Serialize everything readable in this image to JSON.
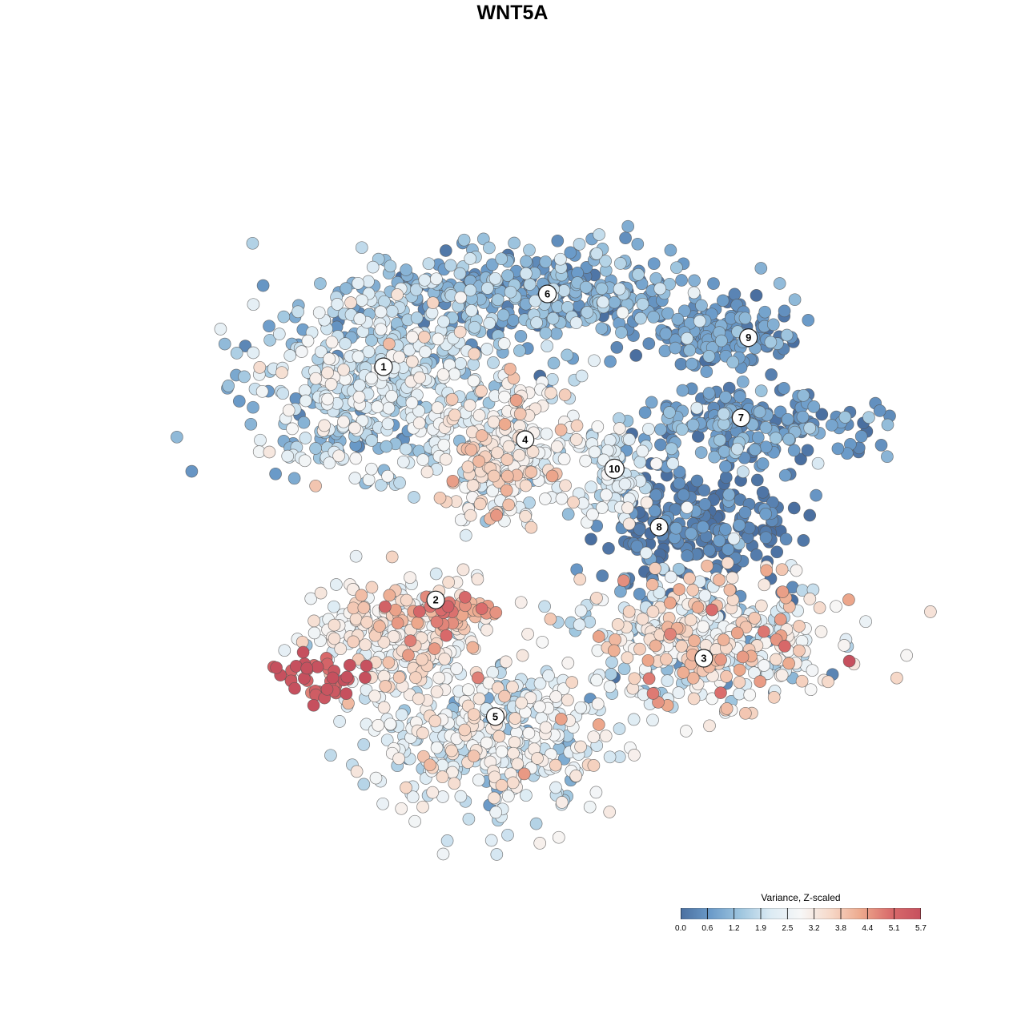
{
  "chart_data": {
    "type": "scatter",
    "title": "WNT5A",
    "xlabel": "",
    "ylabel": "",
    "axes_visible": false,
    "grid": false,
    "legend": {
      "title": "Variance, Z-scaled",
      "placement": "bottom-right",
      "colorscale": [
        "#4a6fa0",
        "#6b9bc9",
        "#9fc6df",
        "#dcebf4",
        "#f7f7f7",
        "#f6d8c8",
        "#eda98d",
        "#d96b6b",
        "#c6505e"
      ],
      "range": [
        0.0,
        5.7
      ],
      "ticks": [
        "0.0",
        "0.6",
        "1.2",
        "1.9",
        "2.5",
        "3.2",
        "3.8",
        "4.4",
        "5.1",
        "5.7"
      ]
    },
    "clusters": [
      {
        "label": "1",
        "x": 0.3,
        "y": 0.7,
        "mean_value": 1.8
      },
      {
        "label": "2",
        "x": 0.37,
        "y": 0.38,
        "mean_value": 3.0
      },
      {
        "label": "3",
        "x": 0.73,
        "y": 0.3,
        "mean_value": 2.6
      },
      {
        "label": "4",
        "x": 0.49,
        "y": 0.6,
        "mean_value": 2.8
      },
      {
        "label": "5",
        "x": 0.45,
        "y": 0.22,
        "mean_value": 2.4
      },
      {
        "label": "6",
        "x": 0.52,
        "y": 0.8,
        "mean_value": 1.0
      },
      {
        "label": "7",
        "x": 0.78,
        "y": 0.63,
        "mean_value": 0.7
      },
      {
        "label": "8",
        "x": 0.67,
        "y": 0.48,
        "mean_value": 0.2
      },
      {
        "label": "9",
        "x": 0.79,
        "y": 0.74,
        "mean_value": 0.6
      },
      {
        "label": "10",
        "x": 0.61,
        "y": 0.56,
        "mean_value": 2.1
      }
    ],
    "hotspots": [
      {
        "x": 0.21,
        "y": 0.27,
        "mean_value": 5.5
      },
      {
        "x": 0.39,
        "y": 0.37,
        "mean_value": 4.6
      }
    ]
  }
}
